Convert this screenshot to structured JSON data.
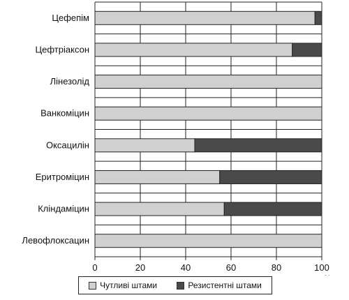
{
  "chart_data": {
    "type": "bar",
    "orientation": "horizontal",
    "stacked": true,
    "categories": [
      "Цефепім",
      "Цефтріаксон",
      "Лінезолід",
      "Ванкоміцин",
      "Оксацилін",
      "Еритроміцин",
      "Кліндаміцин",
      "Левофлоксацин"
    ],
    "series": [
      {
        "name": "Чутливі штами",
        "values": [
          97,
          87,
          100,
          100,
          44,
          55,
          57,
          100
        ],
        "color": "#d0d0d0"
      },
      {
        "name": "Резистентні штами",
        "values": [
          3,
          13,
          0,
          0,
          56,
          45,
          43,
          0
        ],
        "color": "#4a4a4a"
      }
    ],
    "xlim": [
      0,
      100
    ],
    "xticks": [
      "0",
      "20",
      "40",
      "60",
      "80",
      "100"
    ],
    "xunit": "%",
    "grid": true,
    "legend_position": "bottom"
  }
}
